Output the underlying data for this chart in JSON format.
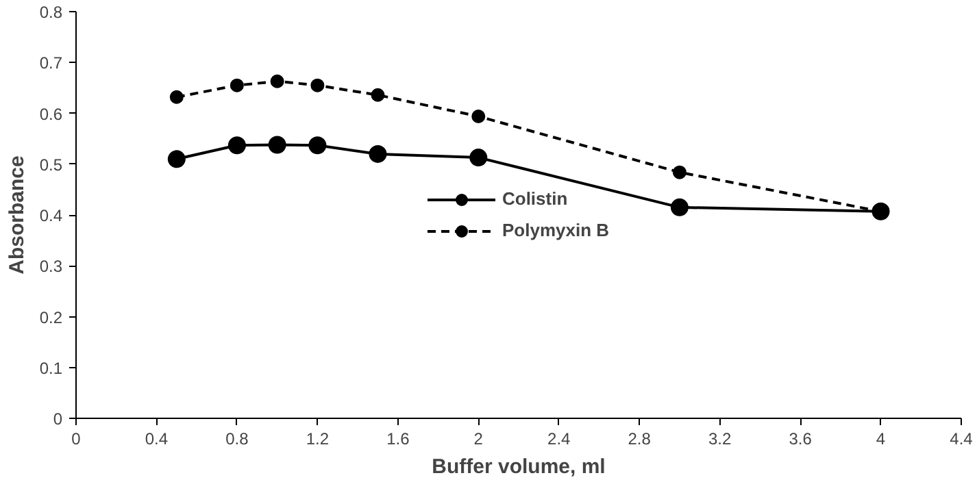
{
  "chart_data": {
    "type": "line",
    "xlabel": "Buffer volume, ml",
    "ylabel": "Absorbance",
    "x": [
      0.5,
      0.8,
      1.0,
      1.2,
      1.5,
      2.0,
      3.0,
      4.0
    ],
    "series": [
      {
        "name": "Colistin",
        "color": "#000000",
        "line_style": "solid",
        "values": [
          0.51,
          0.537,
          0.538,
          0.537,
          0.52,
          0.513,
          0.415,
          0.407
        ]
      },
      {
        "name": "Polymyxin B",
        "color": "#000000",
        "line_style": "dashed",
        "values": [
          0.632,
          0.655,
          0.663,
          0.655,
          0.636,
          0.594,
          0.484,
          0.407
        ]
      }
    ],
    "marker": "circle",
    "grid": false,
    "legend": "center",
    "xlim": [
      0,
      4.4
    ],
    "xticks": [
      0,
      0.4,
      0.8,
      1.2,
      1.6,
      2,
      2.4,
      2.8,
      3.2,
      3.6,
      4,
      4.4
    ],
    "ylim": [
      0,
      0.8
    ],
    "yticks": [
      0,
      0.1,
      0.2,
      0.3,
      0.4,
      0.5,
      0.6,
      0.7,
      0.8
    ]
  }
}
